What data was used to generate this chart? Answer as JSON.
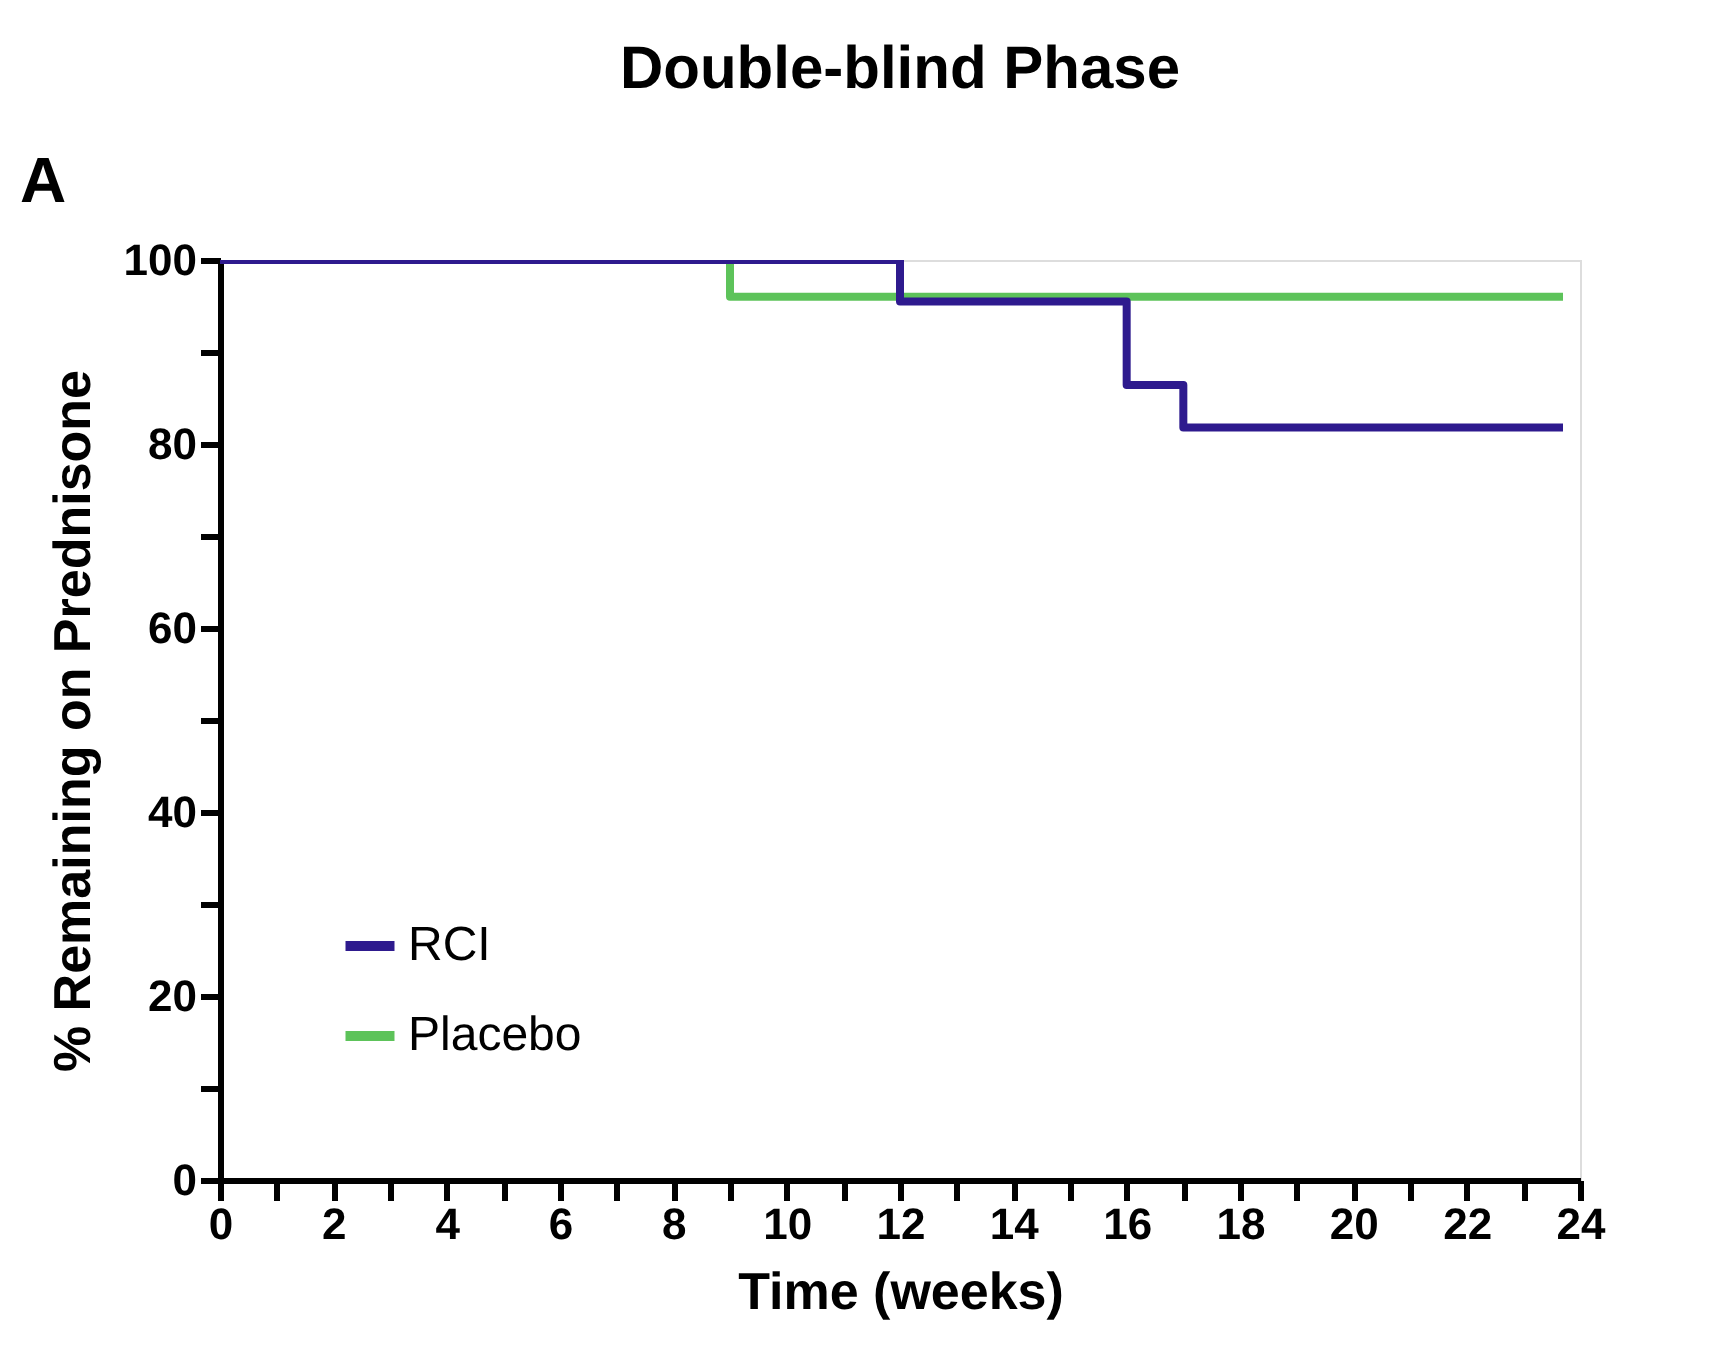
{
  "chart_data": {
    "type": "step",
    "title": "Double-blind Phase",
    "xlabel": "Time (weeks)",
    "ylabel": "% Remaining on Prednisone",
    "annotations": [
      "A"
    ],
    "series": [
      {
        "name": "RCI",
        "color": "#2e1a8e",
        "x": [
          0,
          12,
          16,
          17,
          23.7
        ],
        "values": [
          100,
          95.5,
          86.4,
          81.8,
          81.8
        ]
      },
      {
        "name": "Placebo",
        "color": "#5dc35a",
        "x": [
          0,
          9,
          23.7
        ],
        "values": [
          100,
          96,
          96
        ]
      }
    ],
    "xlim": [
      0,
      24
    ],
    "ylim": [
      0,
      100
    ],
    "xticks": [
      0,
      {
        "value": 1,
        "label": null
      },
      2,
      {
        "value": 3,
        "label": null
      },
      4,
      {
        "value": 5,
        "label": null
      },
      6,
      {
        "value": 7,
        "label": null
      },
      8,
      {
        "value": 9,
        "label": null
      },
      10,
      {
        "value": 11,
        "label": null
      },
      12,
      {
        "value": 13,
        "label": null
      },
      14,
      {
        "value": 15,
        "label": null
      },
      16,
      {
        "value": 17,
        "label": null
      },
      18,
      {
        "value": 19,
        "label": null
      },
      20,
      {
        "value": 21,
        "label": null
      },
      22,
      {
        "value": 23,
        "label": null
      },
      24
    ],
    "yticks": [
      0,
      {
        "value": 10,
        "label": null
      },
      20,
      {
        "value": 30,
        "label": null
      },
      40,
      {
        "value": 50,
        "label": null
      },
      60,
      {
        "value": 70,
        "label": null
      },
      80,
      {
        "value": 90,
        "label": null
      },
      100
    ],
    "legend": "bottom left",
    "grid": false,
    "line_style": "solid",
    "marker": "none"
  }
}
